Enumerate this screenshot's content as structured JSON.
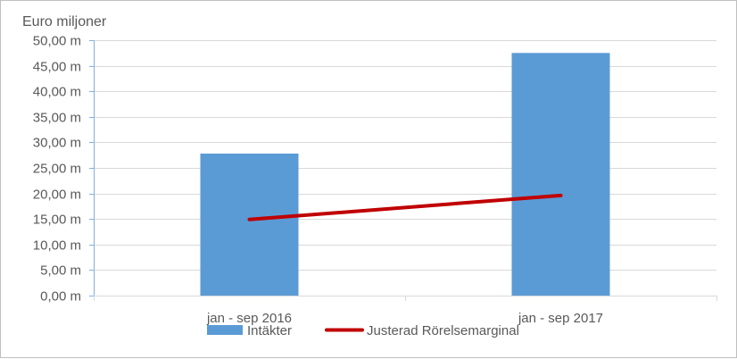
{
  "chart_data": {
    "type": "bar",
    "y_unit_label": "Euro miljoner",
    "categories": [
      "jan - sep 2016",
      "jan - sep 2017"
    ],
    "ylim": [
      0,
      50
    ],
    "y_ticks": [
      0,
      5,
      10,
      15,
      20,
      25,
      30,
      35,
      40,
      45,
      50
    ],
    "y_tick_labels": [
      "0,00 m",
      "5,00 m",
      "10,00 m",
      "15,00 m",
      "20,00 m",
      "25,00 m",
      "30,00 m",
      "35,00 m",
      "40,00 m",
      "45,00 m",
      "50,00 m"
    ],
    "grid": true,
    "legend_position": "bottom",
    "series": [
      {
        "name": "Intäkter",
        "kind": "bar",
        "color": "#5b9bd5",
        "values": [
          27.8,
          47.5
        ]
      },
      {
        "name": "Justerad Rörelsemarginal",
        "kind": "line",
        "color": "#c00000",
        "values": [
          14.9,
          19.6
        ]
      }
    ]
  }
}
